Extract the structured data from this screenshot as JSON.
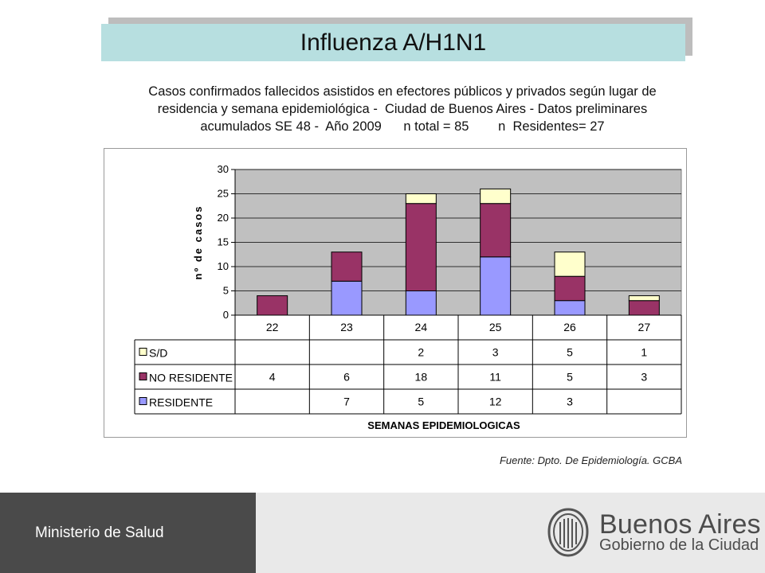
{
  "header": {
    "title": "Influenza A/H1N1"
  },
  "subtitle": {
    "line1": "Casos confirmados fallecidos asistidos en efectores públicos y privados según lugar de",
    "line2": "residencia y semana epidemiológica -  Ciudad de Buenos Aires - Datos preliminares",
    "line3": "acumulados SE 48 -  Año 2009      n total = 85        n  Residentes= 27"
  },
  "source": "Fuente: Dpto. De Epidemiología. GCBA",
  "footer": {
    "ministry": "Ministerio de Salud",
    "brand_name": "Buenos Aires",
    "brand_sub": "Gobierno de la Ciudad"
  },
  "chart_data": {
    "type": "bar",
    "stacked": true,
    "categories": [
      "22",
      "23",
      "24",
      "25",
      "26",
      "27"
    ],
    "series": [
      {
        "name": "RESIDENTE",
        "color": "#9999ff",
        "values": [
          null,
          7,
          5,
          12,
          3,
          null
        ]
      },
      {
        "name": "NO RESIDENTE",
        "color": "#993366",
        "values": [
          4,
          6,
          18,
          11,
          5,
          3
        ]
      },
      {
        "name": "S/D",
        "color": "#ffffcc",
        "values": [
          null,
          null,
          2,
          3,
          5,
          1
        ]
      }
    ],
    "table_order": [
      "S/D",
      "NO RESIDENTE",
      "RESIDENTE"
    ],
    "ylabel": "nº de casos",
    "xlabel": "SEMANAS EPIDEMIOLOGICAS",
    "ylim": [
      0,
      30
    ],
    "yticks": [
      0,
      5,
      10,
      15,
      20,
      25,
      30
    ],
    "plot_background": "#c0c0c0",
    "grid": true,
    "legend": "data-table"
  }
}
